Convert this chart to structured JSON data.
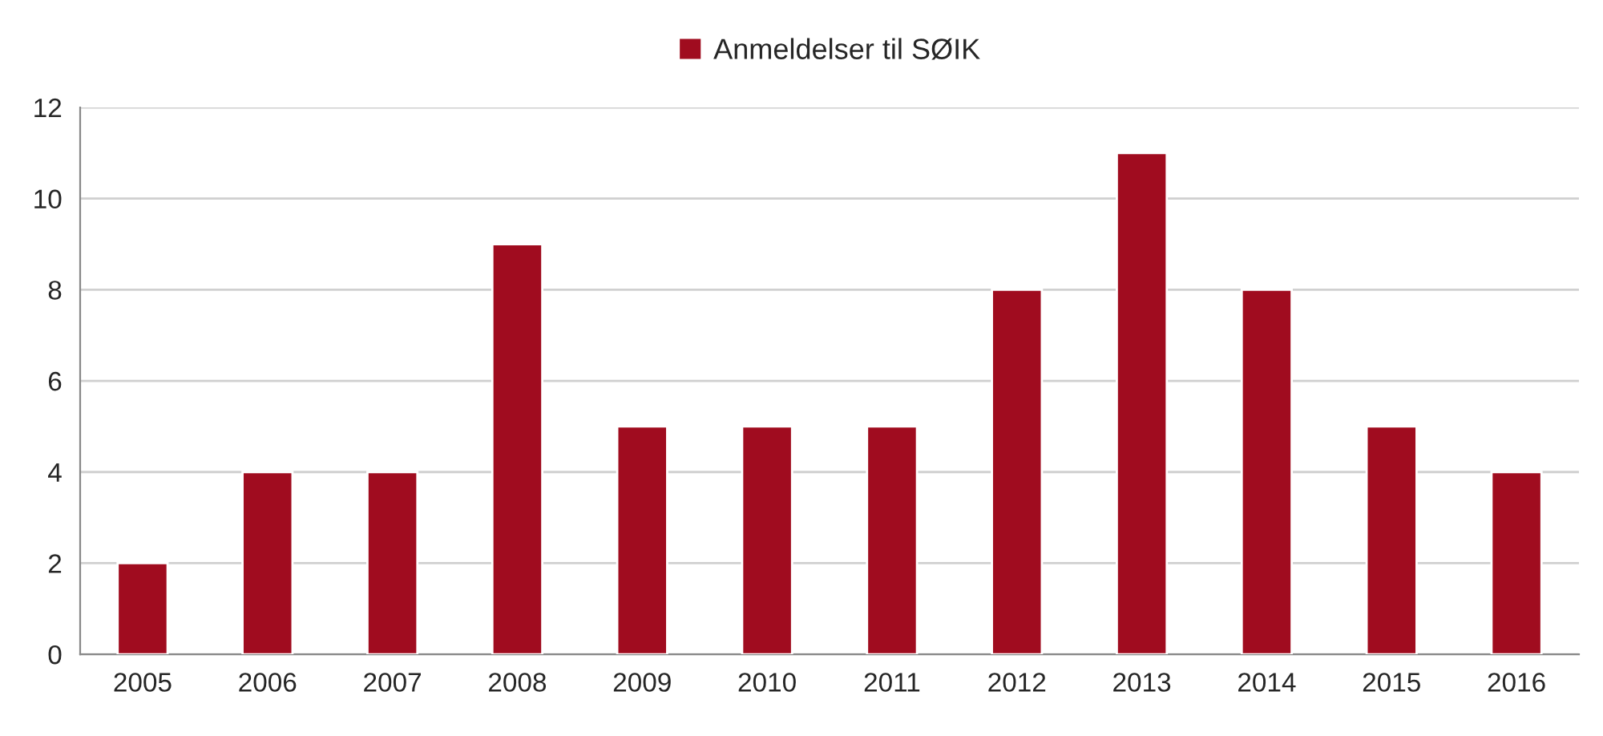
{
  "chart_data": {
    "type": "bar",
    "categories": [
      "2005",
      "2006",
      "2007",
      "2008",
      "2009",
      "2010",
      "2011",
      "2012",
      "2013",
      "2014",
      "2015",
      "2016"
    ],
    "series": [
      {
        "name": "Anmeldelser til SØIK",
        "color": "#a00c1f",
        "values": [
          2,
          4,
          4,
          9,
          5,
          5,
          5,
          8,
          11,
          8,
          5,
          4
        ]
      }
    ],
    "ylim": [
      0,
      12
    ],
    "yticks": [
      0,
      2,
      4,
      6,
      8,
      10,
      12
    ],
    "grid": "y",
    "legend": "top"
  }
}
